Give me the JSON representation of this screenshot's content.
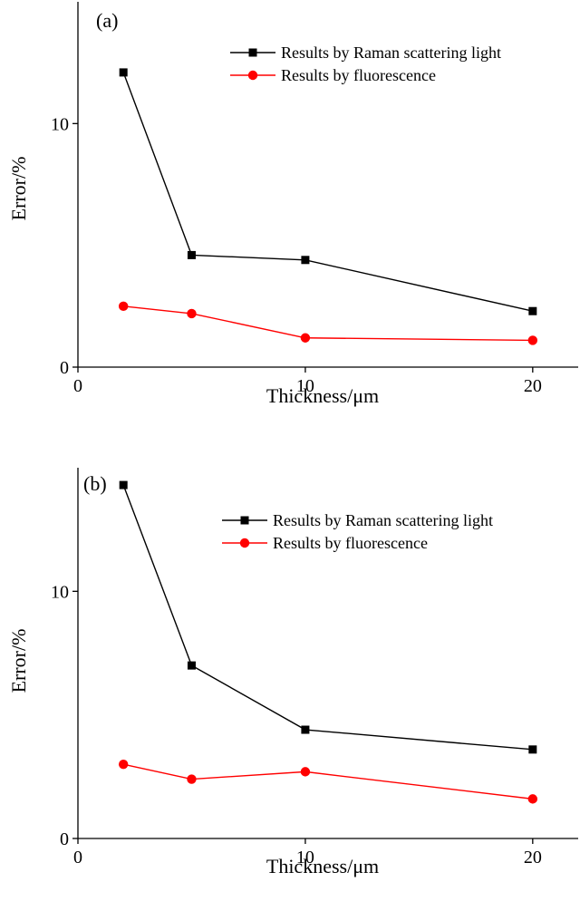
{
  "chart_data": [
    {
      "type": "line",
      "panel_label": "(a)",
      "xlabel": "Thickness/μm",
      "ylabel": "Error/%",
      "xlim": [
        0,
        22
      ],
      "ylim": [
        0,
        15
      ],
      "x_ticks": [
        0,
        10,
        20
      ],
      "x_tick_labels": [
        "0",
        "10",
        "20"
      ],
      "y_ticks": [
        0,
        10
      ],
      "y_tick_labels": [
        "0",
        "10"
      ],
      "grid": false,
      "legend_position": "top-right",
      "series": [
        {
          "name": "Results by Raman scattering light",
          "marker": "square",
          "color": "#000000",
          "x": [
            2,
            5,
            10,
            20
          ],
          "y": [
            12.1,
            4.6,
            4.4,
            2.3
          ]
        },
        {
          "name": "Results by fluorescence",
          "marker": "circle",
          "color": "#ff0000",
          "x": [
            2,
            5,
            10,
            20
          ],
          "y": [
            2.5,
            2.2,
            1.2,
            1.1
          ]
        }
      ]
    },
    {
      "type": "line",
      "panel_label": "(b)",
      "xlabel": "Thickness/μm",
      "ylabel": "Error/%",
      "xlim": [
        0,
        22
      ],
      "ylim": [
        0,
        15
      ],
      "x_ticks": [
        0,
        10,
        20
      ],
      "x_tick_labels": [
        "0",
        "10",
        "20"
      ],
      "y_ticks": [
        0,
        10
      ],
      "y_tick_labels": [
        "0",
        "10"
      ],
      "grid": false,
      "legend_position": "top-right",
      "series": [
        {
          "name": "Results by Raman scattering light",
          "marker": "square",
          "color": "#000000",
          "x": [
            2,
            5,
            10,
            20
          ],
          "y": [
            14.3,
            7.0,
            4.4,
            3.6
          ]
        },
        {
          "name": "Results by fluorescence",
          "marker": "circle",
          "color": "#ff0000",
          "x": [
            2,
            5,
            10,
            20
          ],
          "y": [
            3.0,
            2.4,
            2.7,
            1.6
          ]
        }
      ]
    }
  ]
}
